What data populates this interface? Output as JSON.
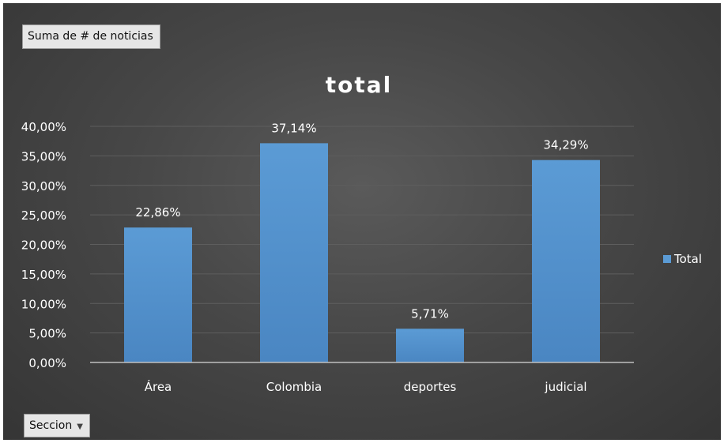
{
  "pivot": {
    "value_field_button": "Suma de # de noticias",
    "axis_field_button": "Seccion",
    "axis_field_icon": "dropdown-caret-icon"
  },
  "chart_data": {
    "type": "bar",
    "title": "total",
    "categories": [
      "Área",
      "Colombia",
      "deportes",
      "judicial"
    ],
    "series": [
      {
        "name": "Total",
        "values": [
          22.86,
          37.14,
          5.71,
          34.29
        ],
        "labels": [
          "22,86%",
          "37,14%",
          "5,71%",
          "34,29%"
        ],
        "color": "#5b9bd5"
      }
    ],
    "ylim": [
      0,
      40
    ],
    "yticks": [
      0,
      5,
      10,
      15,
      20,
      25,
      30,
      35,
      40
    ],
    "ytick_labels": [
      "0,00%",
      "5,00%",
      "10,00%",
      "15,00%",
      "20,00%",
      "25,00%",
      "30,00%",
      "35,00%",
      "40,00%"
    ],
    "grid": true,
    "legend_position": "right"
  },
  "colors": {
    "background": "#474747",
    "text": "#ffffff",
    "gridline": "#5e5e5e",
    "axis_line": "#bfbfbf",
    "bar": "#5b9bd5"
  }
}
